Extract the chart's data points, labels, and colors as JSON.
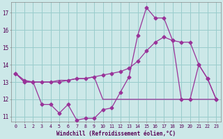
{
  "xlabel": "Windchill (Refroidissement éolien,°C)",
  "bg": "#cce8e8",
  "grid_color": "#99cccc",
  "line_color": "#993399",
  "hours": [
    0,
    1,
    2,
    3,
    4,
    5,
    6,
    7,
    8,
    9,
    10,
    11,
    12,
    13,
    14,
    15,
    16,
    17,
    18,
    19,
    20,
    21,
    22,
    23
  ],
  "line1": [
    13.5,
    13.0,
    13.0,
    11.7,
    11.7,
    11.2,
    11.7,
    10.8,
    10.9,
    10.9,
    11.4,
    11.5,
    12.4,
    13.3,
    15.7,
    17.3,
    16.7,
    16.7,
    15.4,
    12.0,
    12.0,
    14.0,
    13.2,
    12.0
  ],
  "line2": [
    13.5,
    13.1,
    13.0,
    13.0,
    13.0,
    13.0,
    13.1,
    13.2,
    13.2,
    13.3,
    13.4,
    13.5,
    13.6,
    13.8,
    14.2,
    14.8,
    15.3,
    15.6,
    15.4,
    15.3,
    15.3,
    14.0,
    13.2,
    12.0
  ],
  "line3": [
    13.5,
    13.0,
    13.0,
    13.0,
    13.0,
    13.1,
    13.1,
    13.2,
    13.2,
    13.3,
    12.0,
    12.0,
    12.0,
    12.0,
    12.0,
    12.0,
    12.0,
    12.0,
    12.0,
    12.0,
    12.0,
    12.0,
    12.0,
    12.0
  ],
  "ylim": [
    10.7,
    17.6
  ],
  "yticks": [
    11,
    12,
    13,
    14,
    15,
    16,
    17
  ],
  "markersize": 2.5
}
